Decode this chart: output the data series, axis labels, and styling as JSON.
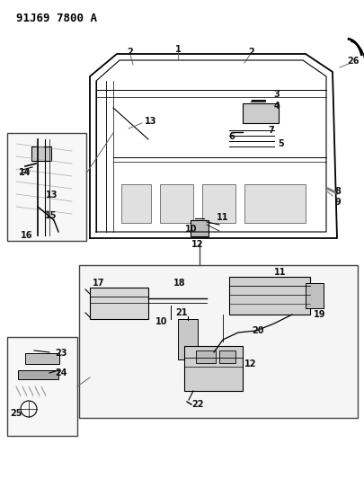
{
  "background_color": "#ffffff",
  "diagram_id": "91J69 7800 A",
  "line_color": "#000000",
  "gray_light": "#cccccc",
  "gray_mid": "#999999",
  "gray_dark": "#555555",
  "text_color": "#111111",
  "fs_label": 7,
  "fs_title": 9
}
